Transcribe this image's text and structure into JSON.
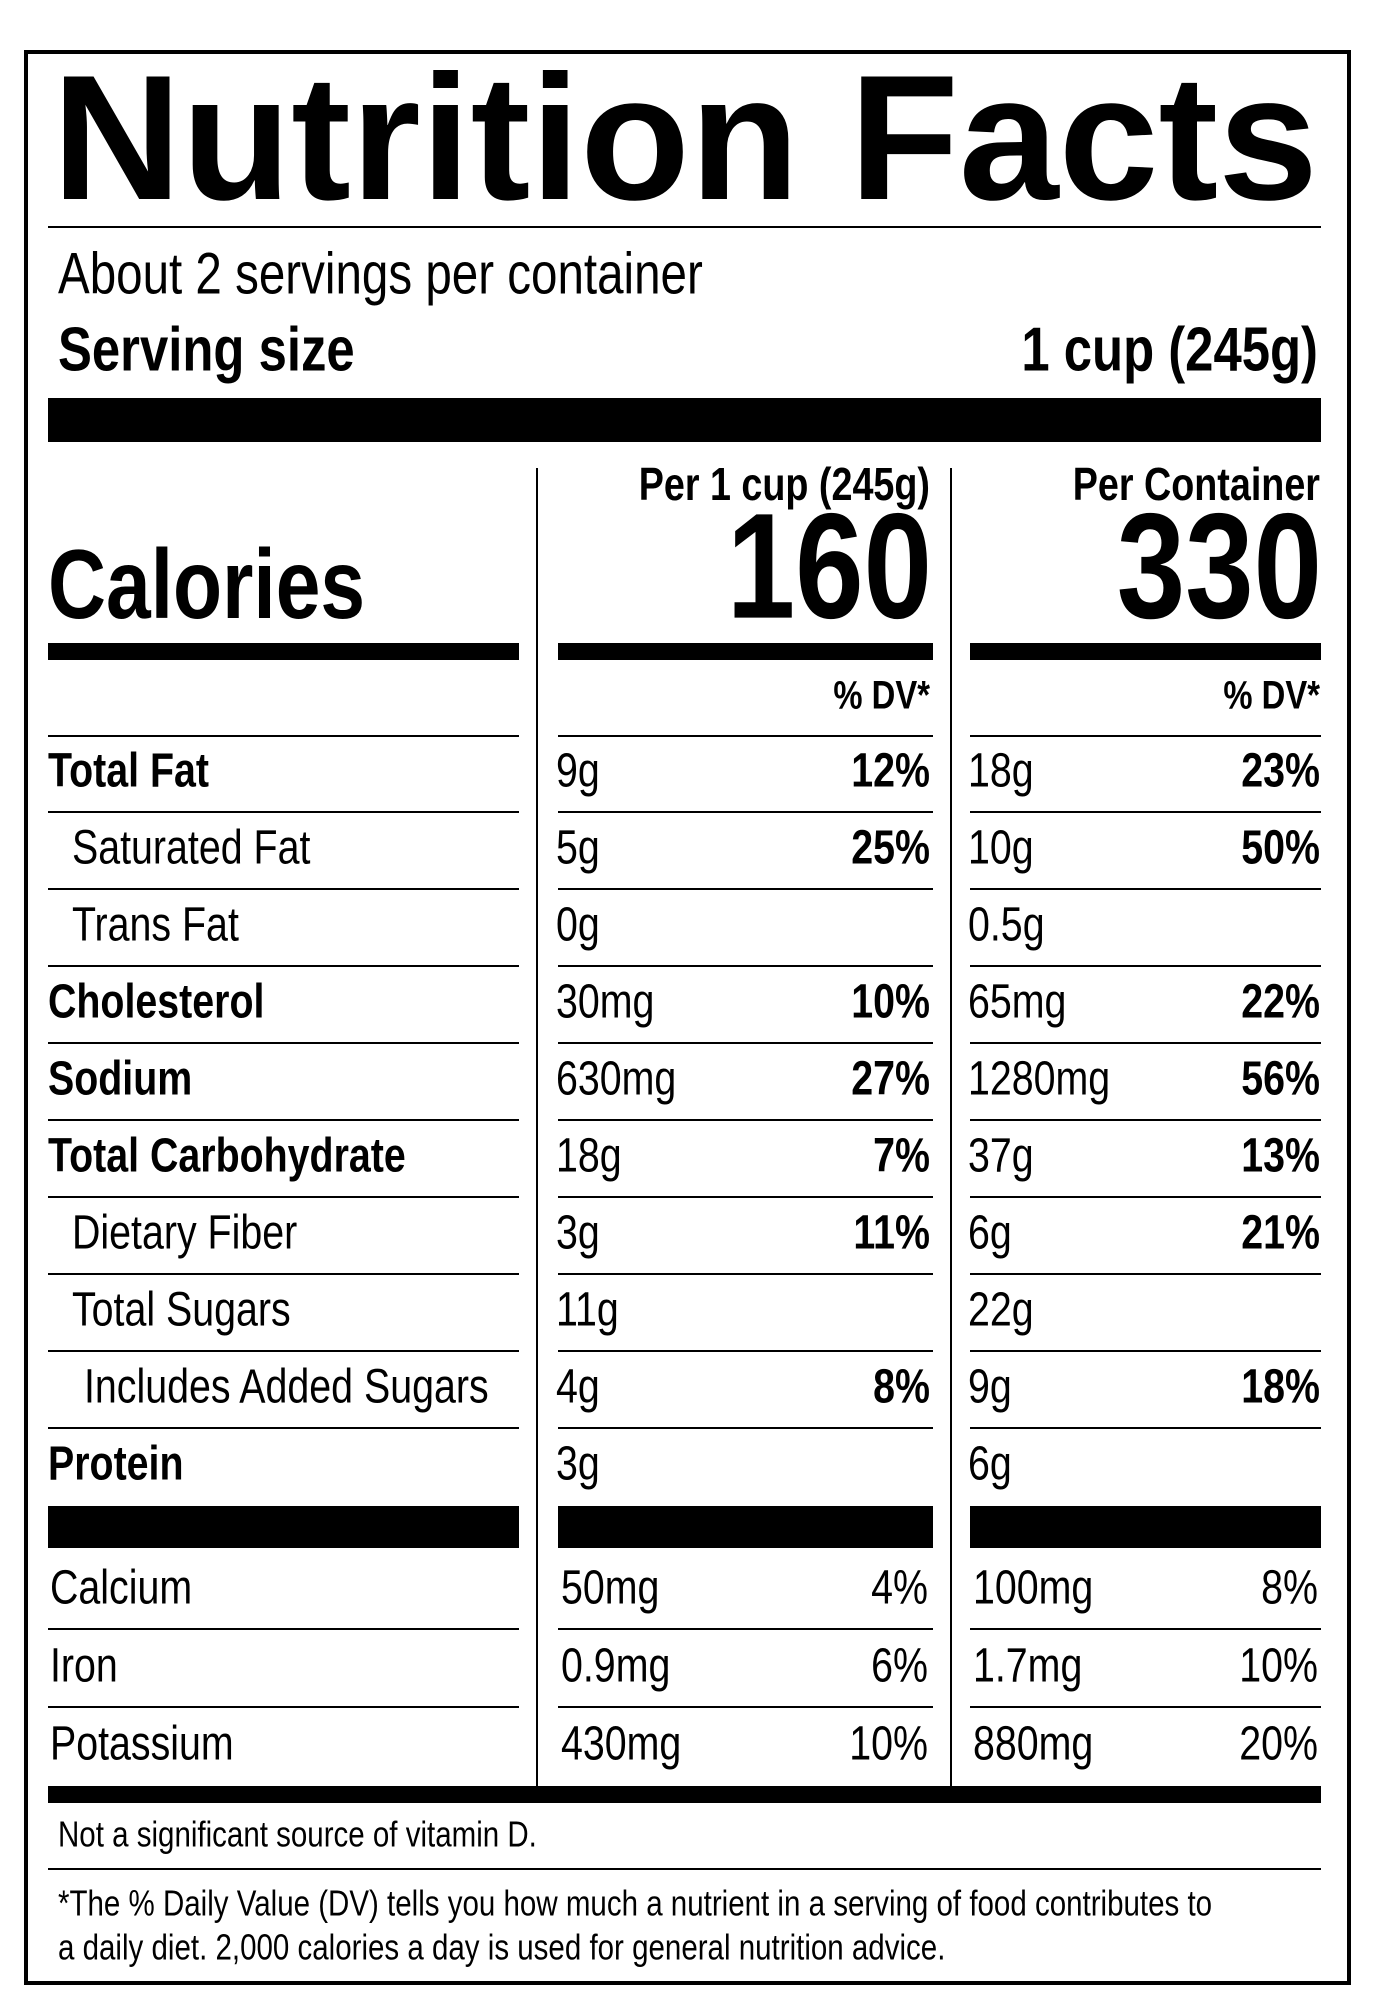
{
  "header": {
    "title": "Nutrition Facts",
    "servings": "About 2 servings per container",
    "serving_size_label": "Serving size",
    "serving_size_value": "1 cup (245g)"
  },
  "calories_label": "Calories",
  "columns": [
    {
      "heading": "Per 1 cup (245g)",
      "calories": "160",
      "dv_heading": "% DV*"
    },
    {
      "heading": "Per Container",
      "calories": "330",
      "dv_heading": "% DV*"
    }
  ],
  "nutrients": [
    {
      "name": "Total Fat",
      "bold": true,
      "indent": 0,
      "values": [
        [
          "9g",
          "12%"
        ],
        [
          "18g",
          "23%"
        ]
      ]
    },
    {
      "name": "Saturated Fat",
      "bold": false,
      "indent": 1,
      "values": [
        [
          "5g",
          "25%"
        ],
        [
          "10g",
          "50%"
        ]
      ]
    },
    {
      "name": "Trans Fat",
      "bold": false,
      "indent": 1,
      "values": [
        [
          "0g"
        ],
        [
          "0.5g"
        ]
      ]
    },
    {
      "name": "Cholesterol",
      "bold": true,
      "indent": 0,
      "values": [
        [
          "30mg",
          "10%"
        ],
        [
          "65mg",
          "22%"
        ]
      ]
    },
    {
      "name": "Sodium",
      "bold": true,
      "indent": 0,
      "values": [
        [
          "630mg",
          "27%"
        ],
        [
          "1280mg",
          "56%"
        ]
      ]
    },
    {
      "name": "Total Carbohydrate",
      "bold": true,
      "indent": 0,
      "values": [
        [
          "18g",
          "7%"
        ],
        [
          "37g",
          "13%"
        ]
      ]
    },
    {
      "name": "Dietary Fiber",
      "bold": false,
      "indent": 1,
      "values": [
        [
          "3g",
          "11%"
        ],
        [
          "6g",
          "21%"
        ]
      ]
    },
    {
      "name": "Total Sugars",
      "bold": false,
      "indent": 1,
      "values": [
        [
          "11g"
        ],
        [
          "22g"
        ]
      ]
    },
    {
      "name": "Includes Added Sugars",
      "bold": false,
      "indent": 2,
      "values": [
        [
          "4g",
          "8%"
        ],
        [
          "9g",
          "18%"
        ]
      ]
    },
    {
      "name": "Protein",
      "bold": true,
      "indent": 0,
      "values": [
        [
          "3g"
        ],
        [
          "6g"
        ]
      ]
    }
  ],
  "minerals": [
    {
      "name": "Calcium",
      "values": [
        [
          "50mg",
          "4%"
        ],
        [
          "100mg",
          "8%"
        ]
      ]
    },
    {
      "name": "Iron",
      "values": [
        [
          "0.9mg",
          "6%"
        ],
        [
          "1.7mg",
          "10%"
        ]
      ]
    },
    {
      "name": "Potassium",
      "values": [
        [
          "430mg",
          "10%"
        ],
        [
          "880mg",
          "20%"
        ]
      ]
    }
  ],
  "footnotes": [
    "Not a significant source of vitamin D.",
    "*The % Daily Value (DV) tells you how much a nutrient in a serving of food contributes to",
    "a daily diet. 2,000 calories a day is used for general nutrition advice."
  ]
}
